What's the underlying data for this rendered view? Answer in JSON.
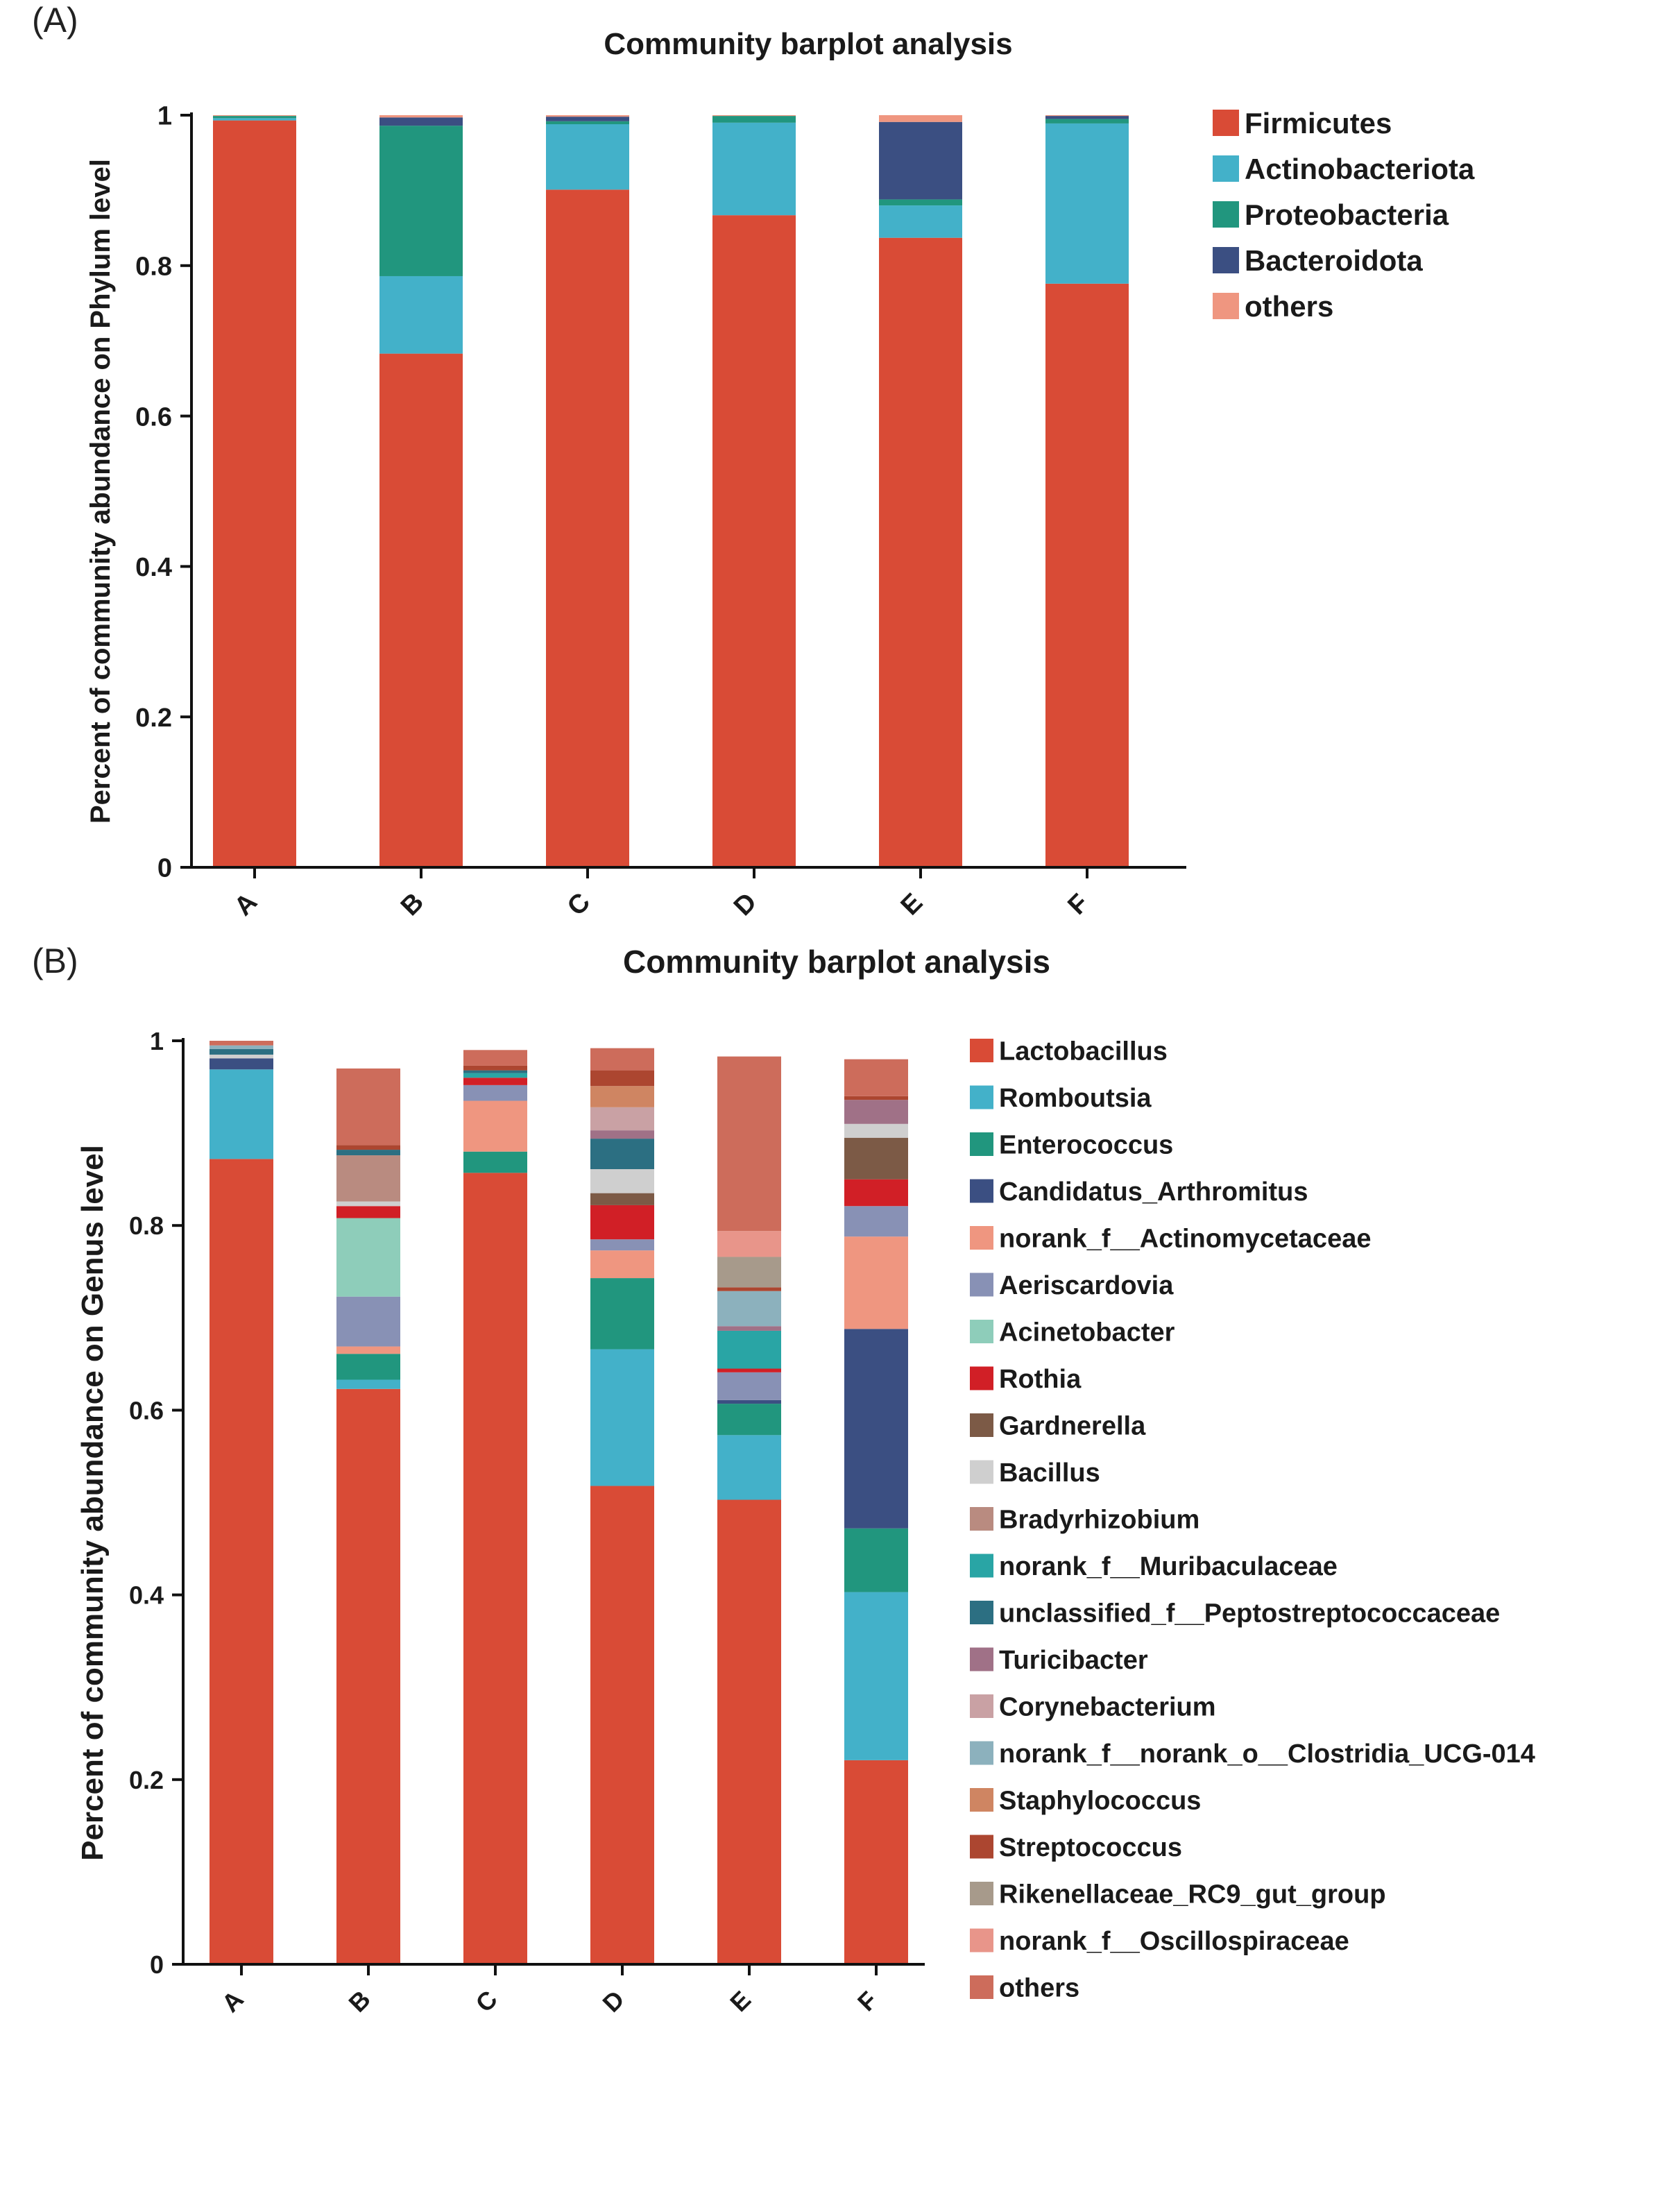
{
  "panel_a_label": "(A)",
  "panel_b_label": "(B)",
  "chart_data": [
    {
      "type": "bar",
      "stacked": true,
      "title": "Community barplot analysis",
      "xlabel": "",
      "ylabel": "Percent of community abundance on Phylum level",
      "ylim": [
        0,
        1
      ],
      "yticks": [
        "0",
        "0.2",
        "0.4",
        "0.6",
        "0.8",
        "1"
      ],
      "categories": [
        "A",
        "B",
        "C",
        "D",
        "E",
        "F"
      ],
      "legend_position": "right",
      "series": [
        {
          "name": "Firmicutes",
          "color": "#d94b36",
          "values": [
            0.993,
            0.683,
            0.901,
            0.867,
            0.837,
            0.776
          ]
        },
        {
          "name": "Actinobacteriota",
          "color": "#43b1c9",
          "values": [
            0.003,
            0.103,
            0.087,
            0.123,
            0.043,
            0.213
          ]
        },
        {
          "name": "Proteobacteria",
          "color": "#21967e",
          "values": [
            0.003,
            0.2,
            0.004,
            0.009,
            0.008,
            0.006
          ]
        },
        {
          "name": "Bacteroidota",
          "color": "#3b4f82",
          "values": [
            0.0,
            0.011,
            0.006,
            0.0,
            0.103,
            0.004
          ]
        },
        {
          "name": "others",
          "color": "#ef9680",
          "values": [
            0.001,
            0.003,
            0.002,
            0.001,
            0.009,
            0.001
          ]
        }
      ]
    },
    {
      "type": "bar",
      "stacked": true,
      "title": "Community barplot analysis",
      "xlabel": "",
      "ylabel": "Percent of community abundance on Genus level",
      "ylim": [
        0,
        1
      ],
      "yticks": [
        "0",
        "0.2",
        "0.4",
        "0.6",
        "0.8",
        "1"
      ],
      "categories": [
        "A",
        "B",
        "C",
        "D",
        "E",
        "F"
      ],
      "legend_position": "right",
      "series": [
        {
          "name": "Lactobacillus",
          "color": "#d94b36",
          "values": [
            0.872,
            0.623,
            0.857,
            0.518,
            0.503,
            0.221
          ]
        },
        {
          "name": "Romboutsia",
          "color": "#43b1c9",
          "values": [
            0.097,
            0.01,
            0.0,
            0.148,
            0.07,
            0.182
          ]
        },
        {
          "name": "Enterococcus",
          "color": "#21967e",
          "values": [
            0.0,
            0.028,
            0.023,
            0.077,
            0.034,
            0.069
          ]
        },
        {
          "name": "Candidatus_Arthromitus",
          "color": "#3b4f82",
          "values": [
            0.012,
            0.0,
            0.0,
            0.0,
            0.004,
            0.216
          ]
        },
        {
          "name": "norank_f__Actinomycetaceae",
          "color": "#ef9680",
          "values": [
            0.0,
            0.008,
            0.055,
            0.03,
            0.0,
            0.1
          ]
        },
        {
          "name": "Aeriscardovia",
          "color": "#8891b5",
          "values": [
            0.0,
            0.054,
            0.017,
            0.012,
            0.03,
            0.033
          ]
        },
        {
          "name": "Acinetobacter",
          "color": "#8ecdba",
          "values": [
            0.0,
            0.085,
            0.0,
            0.0,
            0.0,
            0.0
          ]
        },
        {
          "name": "Rothia",
          "color": "#d11f26",
          "values": [
            0.0,
            0.013,
            0.008,
            0.037,
            0.004,
            0.029
          ]
        },
        {
          "name": "Gardnerella",
          "color": "#7c5a46",
          "values": [
            0.0,
            0.0,
            0.0,
            0.013,
            0.0,
            0.045
          ]
        },
        {
          "name": "Bacillus",
          "color": "#cfcfcf",
          "values": [
            0.004,
            0.005,
            0.0,
            0.026,
            0.0,
            0.015
          ]
        },
        {
          "name": "Bradyrhizobium",
          "color": "#b98b80",
          "values": [
            0.0,
            0.05,
            0.0,
            0.0,
            0.0,
            0.0
          ]
        },
        {
          "name": "norank_f__Muribaculaceae",
          "color": "#29a5a5",
          "values": [
            0.0,
            0.0,
            0.005,
            0.0,
            0.041,
            0.0
          ]
        },
        {
          "name": "unclassified_f__Peptostreptococcaceae",
          "color": "#2c6f82",
          "values": [
            0.006,
            0.006,
            0.003,
            0.033,
            0.0,
            0.0
          ]
        },
        {
          "name": "Turicibacter",
          "color": "#a07187",
          "values": [
            0.0,
            0.0,
            0.0,
            0.009,
            0.005,
            0.026
          ]
        },
        {
          "name": "Corynebacterium",
          "color": "#c9a1a4",
          "values": [
            0.0,
            0.0,
            0.0,
            0.025,
            0.0,
            0.0
          ]
        },
        {
          "name": "norank_f__norank_o__Clostridia_UCG-014",
          "color": "#8cb1bd",
          "values": [
            0.004,
            0.0,
            0.0,
            0.0,
            0.038,
            0.0
          ]
        },
        {
          "name": "Staphylococcus",
          "color": "#cf8562",
          "values": [
            0.0,
            0.0,
            0.0,
            0.023,
            0.0,
            0.0
          ]
        },
        {
          "name": "Streptococcus",
          "color": "#ac4630",
          "values": [
            0.0,
            0.005,
            0.005,
            0.017,
            0.004,
            0.004
          ]
        },
        {
          "name": "Rikenellaceae_RC9_gut_group",
          "color": "#a79a8b",
          "values": [
            0.0,
            0.0,
            0.0,
            0.0,
            0.033,
            0.0
          ]
        },
        {
          "name": "norank_f__Oscillospiraceae",
          "color": "#e8958a",
          "values": [
            0.0,
            0.0,
            0.0,
            0.0,
            0.028,
            0.0
          ]
        },
        {
          "name": "others",
          "color": "#cd6c5b",
          "values": [
            0.005,
            0.083,
            0.017,
            0.024,
            0.189,
            0.04
          ]
        }
      ]
    }
  ]
}
